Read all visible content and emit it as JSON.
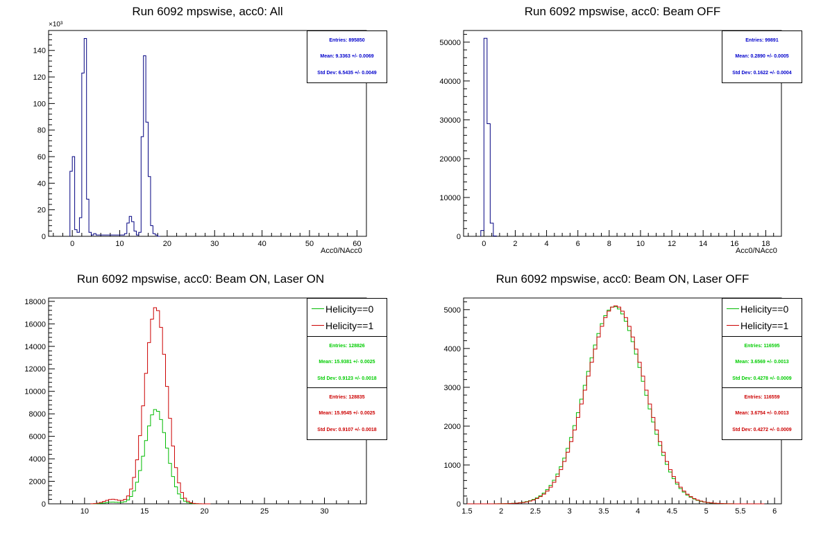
{
  "chart_data": [
    {
      "type": "histogram",
      "title": "Run 6092 mpswise, acc0: All",
      "xlabel": "Acc0/NAcc0",
      "y_multiplier": "×10³",
      "xlim": [
        -5,
        62
      ],
      "ylim": [
        0,
        155
      ],
      "xticks": [
        0,
        10,
        20,
        30,
        40,
        50,
        60
      ],
      "yticks": [
        0,
        20,
        40,
        60,
        80,
        100,
        120,
        140
      ],
      "stats": [
        {
          "entries": "Entries: 895850",
          "mean": "Mean: 9.3363 +/- 0.0069",
          "std": "Std Dev: 6.5435 +/- 0.0049",
          "color": "#0000cc"
        }
      ],
      "series": [
        {
          "color": "#000080",
          "bin_start": -0.5,
          "bin_width": 0.5,
          "values": [
            49,
            60,
            5,
            3,
            14,
            123,
            149,
            28,
            3,
            1,
            2,
            1,
            1,
            1,
            1,
            1,
            1,
            1,
            1,
            1,
            1,
            1,
            1,
            2,
            10,
            15,
            11,
            4,
            1,
            3,
            75,
            136,
            86,
            45,
            8,
            2,
            1,
            0
          ]
        }
      ]
    },
    {
      "type": "histogram",
      "title": "Run 6092 mpswise, acc0: Beam OFF",
      "xlabel": "Acc0/NAcc0",
      "xlim": [
        -1.3,
        19
      ],
      "ylim": [
        0,
        53000
      ],
      "xticks": [
        0,
        2,
        4,
        6,
        8,
        10,
        12,
        14,
        16,
        18
      ],
      "yticks": [
        0,
        10000,
        20000,
        30000,
        40000,
        50000
      ],
      "stats": [
        {
          "entries": "Entries: 99891",
          "mean": "Mean: 0.2890 +/- 0.0005",
          "std": "Std Dev: 0.1622 +/- 0.0004",
          "color": "#0000cc"
        }
      ],
      "series": [
        {
          "color": "#000080",
          "bin_start": -0.2,
          "bin_width": 0.2,
          "values": [
            1500,
            51000,
            29000,
            3400,
            100
          ]
        }
      ]
    },
    {
      "type": "histogram",
      "title": "Run 6092 mpswise, acc0: Beam ON, Laser ON",
      "xlim": [
        7,
        33.5
      ],
      "ylim": [
        0,
        18300
      ],
      "xticks": [
        10,
        15,
        20,
        25,
        30
      ],
      "yticks": [
        0,
        2000,
        4000,
        6000,
        8000,
        10000,
        12000,
        14000,
        16000,
        18000
      ],
      "legend": [
        {
          "name": "Helicity==0",
          "color": "#00bb00"
        },
        {
          "name": "Helicity==1",
          "color": "#cc0000"
        }
      ],
      "stats": [
        {
          "entries": "Entries: 128826",
          "mean": "Mean: 15.9381 +/- 0.0025",
          "std": "Std Dev: 0.9123 +/- 0.0018",
          "color": "#00cc00"
        },
        {
          "entries": "Entries: 128835",
          "mean": "Mean: 15.9545 +/- 0.0025",
          "std": "Std Dev: 0.9107 +/- 0.0018",
          "color": "#cc0000"
        }
      ],
      "series": [
        {
          "name": "Helicity==0",
          "color": "#00bb00",
          "mean": 15.94,
          "sigma": 0.91,
          "peak": 8400,
          "bump": {
            "mean": 12.3,
            "sigma": 0.6,
            "peak": 150
          }
        },
        {
          "name": "Helicity==1",
          "color": "#cc0000",
          "mean": 15.95,
          "sigma": 0.91,
          "peak": 17500,
          "bump": {
            "mean": 12.3,
            "sigma": 0.6,
            "peak": 400
          }
        }
      ]
    },
    {
      "type": "histogram",
      "title": "Run 6092 mpswise, acc0: Beam ON, Laser OFF",
      "xlim": [
        1.45,
        6.1
      ],
      "ylim": [
        0,
        5300
      ],
      "xticks": [
        1.5,
        2,
        2.5,
        3,
        3.5,
        4,
        4.5,
        5,
        5.5,
        6
      ],
      "yticks": [
        0,
        1000,
        2000,
        3000,
        4000,
        5000
      ],
      "legend": [
        {
          "name": "Helicity==0",
          "color": "#00bb00"
        },
        {
          "name": "Helicity==1",
          "color": "#cc0000"
        }
      ],
      "stats": [
        {
          "entries": "Entries: 116595",
          "mean": "Mean: 3.6569 +/- 0.0013",
          "std": "Std Dev: 0.4278 +/- 0.0009",
          "color": "#00cc00"
        },
        {
          "entries": "Entries: 116559",
          "mean": "Mean: 3.6754 +/- 0.0013",
          "std": "Std Dev: 0.4272 +/- 0.0009",
          "color": "#cc0000"
        }
      ],
      "series": [
        {
          "name": "Helicity==0",
          "color": "#00bb00",
          "mean": 3.657,
          "sigma": 0.428,
          "peak": 5080
        },
        {
          "name": "Helicity==1",
          "color": "#cc0000",
          "mean": 3.675,
          "sigma": 0.427,
          "peak": 5100
        }
      ]
    }
  ]
}
